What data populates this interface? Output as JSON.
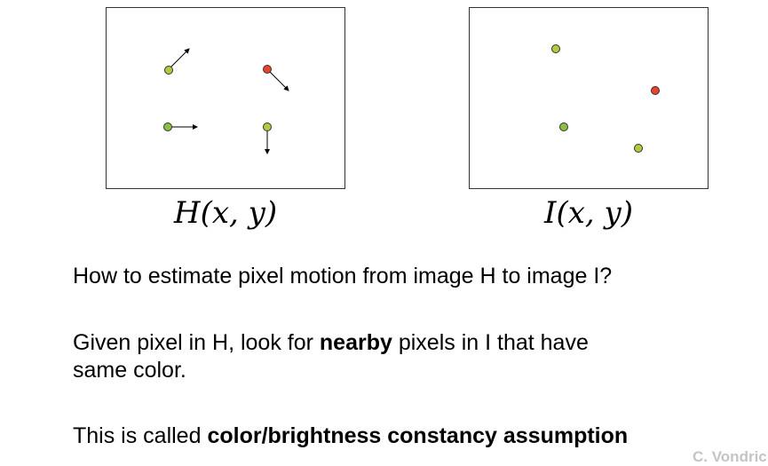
{
  "colors": {
    "green": "#8bbf3f",
    "light_green": "#b5c93c",
    "red": "#e8432e",
    "outline": "#333333"
  },
  "panel_h": {
    "label_symbol": "H",
    "label_args": "(x, y)",
    "points": [
      {
        "color": "light_green",
        "arrow": "up-right"
      },
      {
        "color": "red",
        "arrow": "down-right"
      },
      {
        "color": "green",
        "arrow": "right"
      },
      {
        "color": "light_green",
        "arrow": "down"
      }
    ]
  },
  "panel_i": {
    "label_symbol": "I",
    "label_args": "(x, y)",
    "points": [
      {
        "color": "light_green"
      },
      {
        "color": "red"
      },
      {
        "color": "green"
      },
      {
        "color": "light_green"
      }
    ]
  },
  "text": {
    "question": "How to estimate pixel motion from image H to image I?",
    "given_part1": "Given pixel in H, look for ",
    "given_bold": "nearby",
    "given_part2": " pixels in I that have",
    "given_line2": "same color.",
    "called_part1": "This is called ",
    "called_bold": "color/brightness constancy assumption"
  },
  "credit": "C. Vondrick"
}
